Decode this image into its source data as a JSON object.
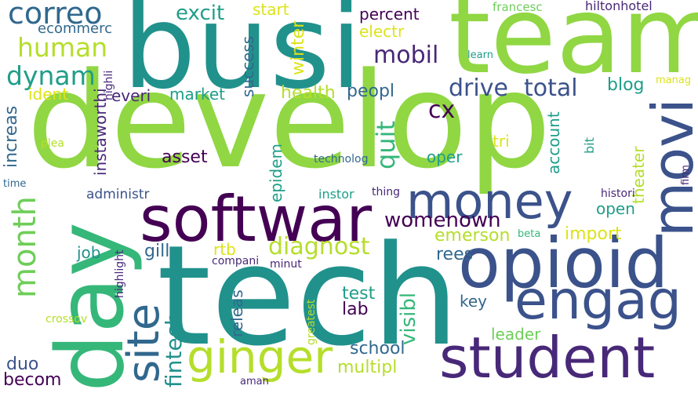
{
  "palette": {
    "dark_purple": "#440154",
    "indigo": "#3b528b",
    "slate_blue": "#31688e",
    "teal": "#21918c",
    "teal_green": "#1f9e89",
    "sea_green": "#35b779",
    "light_green": "#6ece58",
    "lime": "#90d743",
    "yellow_green": "#b5de2b",
    "yellow": "#dde318"
  },
  "words": [
    {
      "id": "develop",
      "text": "develop",
      "color": "#90d743"
    },
    {
      "id": "busi",
      "text": "busi",
      "color": "#21918c"
    },
    {
      "id": "team",
      "text": "team",
      "color": "#90d743"
    },
    {
      "id": "tech",
      "text": "tech",
      "color": "#21918c"
    },
    {
      "id": "day",
      "text": "day",
      "color": "#35b779"
    },
    {
      "id": "softwar",
      "text": "softwar",
      "color": "#440154"
    },
    {
      "id": "opioid",
      "text": "opioid",
      "color": "#3b528b"
    },
    {
      "id": "student",
      "text": "student",
      "color": "#482878"
    },
    {
      "id": "engag",
      "text": "engag",
      "color": "#3b528b"
    },
    {
      "id": "money",
      "text": "money",
      "color": "#3b528b"
    },
    {
      "id": "movi",
      "text": "movi",
      "color": "#3b528b"
    },
    {
      "id": "ginger",
      "text": "ginger",
      "color": "#b5de2b"
    },
    {
      "id": "site",
      "text": "site",
      "color": "#31688e"
    },
    {
      "id": "month",
      "text": "month",
      "color": "#6ece58"
    },
    {
      "id": "correo",
      "text": "correo",
      "color": "#31688e"
    },
    {
      "id": "human",
      "text": "human",
      "color": "#b5de2b"
    },
    {
      "id": "dynam",
      "text": "dynam",
      "color": "#1f9e89"
    },
    {
      "id": "excit",
      "text": "excit",
      "color": "#1f9e89"
    },
    {
      "id": "drive",
      "text": "drive",
      "color": "#3b528b"
    },
    {
      "id": "total",
      "text": "total",
      "color": "#3b528b"
    },
    {
      "id": "mobil",
      "text": "mobil",
      "color": "#482878"
    },
    {
      "id": "diagnost",
      "text": "diagnost",
      "color": "#b5de2b"
    },
    {
      "id": "womenown",
      "text": "womenown",
      "color": "#440154"
    },
    {
      "id": "fintech",
      "text": "fintech",
      "color": "#21918c"
    },
    {
      "id": "cx",
      "text": "cx",
      "color": "#440154"
    },
    {
      "id": "quit",
      "text": "quit",
      "color": "#35b779"
    },
    {
      "id": "visibl",
      "text": "visibl",
      "color": "#35b779"
    },
    {
      "id": "ecommerc",
      "text": "ecommerc",
      "color": "#31688e"
    },
    {
      "id": "start",
      "text": "start",
      "color": "#dde318"
    },
    {
      "id": "percent",
      "text": "percent",
      "color": "#440154"
    },
    {
      "id": "electr",
      "text": "electr",
      "color": "#dde318"
    },
    {
      "id": "winter",
      "text": "winter",
      "color": "#dde318"
    },
    {
      "id": "success",
      "text": "success",
      "color": "#31688e"
    },
    {
      "id": "francesc",
      "text": "francesc",
      "color": "#6ece58"
    },
    {
      "id": "hiltonhotel",
      "text": "hiltonhotel",
      "color": "#482878"
    },
    {
      "id": "learn",
      "text": "learn",
      "color": "#1f9e89"
    },
    {
      "id": "manag",
      "text": "manag",
      "color": "#dde318"
    },
    {
      "id": "highli",
      "text": "highli",
      "color": "#482878"
    },
    {
      "id": "instaworthi",
      "text": "instaworthi",
      "color": "#482878"
    },
    {
      "id": "ident",
      "text": "ident",
      "color": "#dde318"
    },
    {
      "id": "everi",
      "text": "everi",
      "color": "#482878"
    },
    {
      "id": "market",
      "text": "market",
      "color": "#1f9e89"
    },
    {
      "id": "health",
      "text": "health",
      "color": "#b5de2b"
    },
    {
      "id": "peopl",
      "text": "peopl",
      "color": "#31688e"
    },
    {
      "id": "blog",
      "text": "blog",
      "color": "#1f9e89"
    },
    {
      "id": "increas",
      "text": "increas",
      "color": "#31688e"
    },
    {
      "id": "plea",
      "text": "plea",
      "color": "#b5de2b"
    },
    {
      "id": "time",
      "text": "time",
      "color": "#31688e"
    },
    {
      "id": "epidem",
      "text": "epidem",
      "color": "#1f9e89"
    },
    {
      "id": "asset",
      "text": "asset",
      "color": "#440154"
    },
    {
      "id": "tri",
      "text": "tri",
      "color": "#dde318"
    },
    {
      "id": "oper",
      "text": "oper",
      "color": "#1f9e89"
    },
    {
      "id": "account",
      "text": "account",
      "color": "#1f9e89"
    },
    {
      "id": "bit",
      "text": "bit",
      "color": "#1f9e89"
    },
    {
      "id": "theater",
      "text": "theater",
      "color": "#b5de2b"
    },
    {
      "id": "firm",
      "text": "firm",
      "color": "#482878"
    },
    {
      "id": "technolog",
      "text": "technolog",
      "color": "#31688e"
    },
    {
      "id": "administr",
      "text": "administr",
      "color": "#3b528b"
    },
    {
      "id": "instor",
      "text": "instor",
      "color": "#1f9e89"
    },
    {
      "id": "thing",
      "text": "thing",
      "color": "#482878"
    },
    {
      "id": "histori",
      "text": "histori",
      "color": "#482878"
    },
    {
      "id": "open",
      "text": "open",
      "color": "#1f9e89"
    },
    {
      "id": "emerson",
      "text": "emerson",
      "color": "#b5de2b"
    },
    {
      "id": "import",
      "text": "import",
      "color": "#dde318"
    },
    {
      "id": "beta",
      "text": "beta",
      "color": "#35b779"
    },
    {
      "id": "rees",
      "text": "rees",
      "color": "#31688e"
    },
    {
      "id": "job",
      "text": "job",
      "color": "#21918c"
    },
    {
      "id": "gill",
      "text": "gill",
      "color": "#31688e"
    },
    {
      "id": "rtb",
      "text": "rtb",
      "color": "#dde318"
    },
    {
      "id": "compani",
      "text": "compani",
      "color": "#482878"
    },
    {
      "id": "highlight",
      "text": "highlight",
      "color": "#482878"
    },
    {
      "id": "minut",
      "text": "minut",
      "color": "#482878"
    },
    {
      "id": "releas",
      "text": "releas",
      "color": "#31688e"
    },
    {
      "id": "test",
      "text": "test",
      "color": "#1f9e89"
    },
    {
      "id": "lab",
      "text": "lab",
      "color": "#440154"
    },
    {
      "id": "key",
      "text": "key",
      "color": "#31688e"
    },
    {
      "id": "greatest",
      "text": "greatest",
      "color": "#b5de2b"
    },
    {
      "id": "crossov",
      "text": "crossov",
      "color": "#b5de2b"
    },
    {
      "id": "leader",
      "text": "leader",
      "color": "#6ece58"
    },
    {
      "id": "school",
      "text": "school",
      "color": "#31688e"
    },
    {
      "id": "multipl",
      "text": "multipl",
      "color": "#b5de2b"
    },
    {
      "id": "duo",
      "text": "duo",
      "color": "#3b528b"
    },
    {
      "id": "becom",
      "text": "becom",
      "color": "#440154"
    },
    {
      "id": "aman",
      "text": "aman",
      "color": "#482878"
    }
  ]
}
